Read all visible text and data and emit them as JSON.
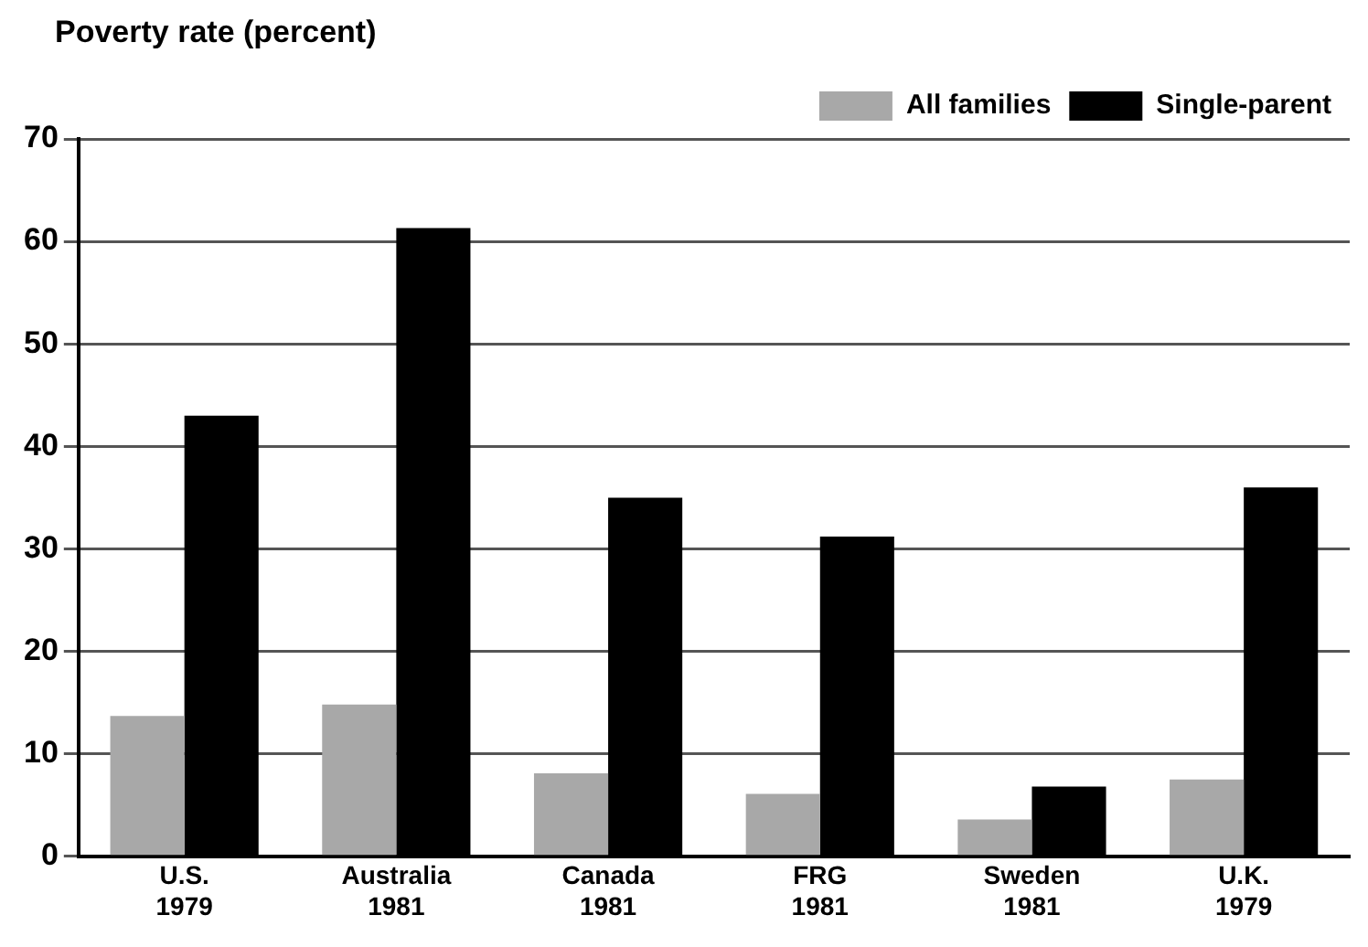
{
  "chart_data": {
    "type": "bar",
    "ylabel": "Poverty rate (percent)",
    "categories": [
      "U.S.\n1979",
      "Australia\n1981",
      "Canada\n1981",
      "FRG\n1981",
      "Sweden\n1981",
      "U.K.\n1979"
    ],
    "series": [
      {
        "name": "All families",
        "color": "#a8a8a8",
        "values": [
          13.7,
          14.8,
          8.1,
          6.1,
          3.6,
          7.5
        ]
      },
      {
        "name": "Single-parent",
        "color": "#000000",
        "values": [
          43,
          61.3,
          35,
          31.2,
          6.8,
          36
        ]
      }
    ],
    "ylim": [
      0,
      70
    ],
    "yticks": [
      0,
      10,
      20,
      30,
      40,
      50,
      60,
      70
    ],
    "grid": "y",
    "legend": "top right"
  }
}
